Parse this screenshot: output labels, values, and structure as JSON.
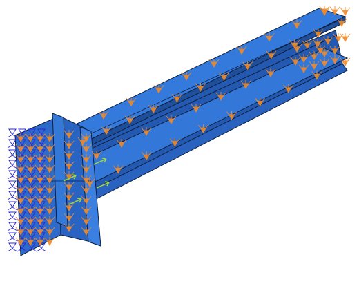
{
  "viewport": {
    "background_color": "#ffffff",
    "model": {
      "beam_color": "#2f72d6",
      "beam_dark_color": "#1f4f9a",
      "endplate_color": "#2d6ac9",
      "edge_color": "#0d1f3d"
    },
    "markers": {
      "load_arrow_color": "#f08a2a",
      "boundary_condition_color": "#2b2bd6",
      "reference_point_color": "#9bd34a",
      "load_arrow_icon": "cone-load-arrow-icon",
      "boundary_condition_icon": "fixed-support-triad-icon",
      "reference_point_icon": "reference-point-arrow-icon"
    }
  }
}
